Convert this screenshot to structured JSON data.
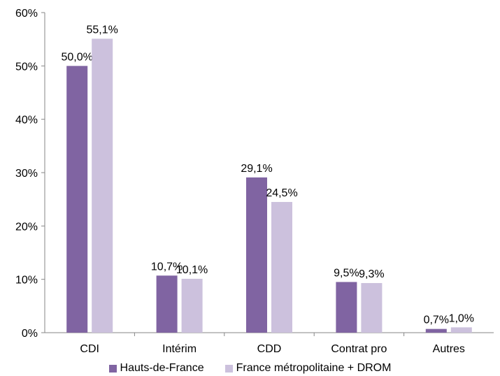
{
  "chart_data": {
    "type": "bar",
    "categories": [
      "CDI",
      "Intérim",
      "CDD",
      "Contrat pro",
      "Autres"
    ],
    "series": [
      {
        "name": "Hauts-de-France",
        "color": "#8064a2",
        "values": [
          50.0,
          10.7,
          29.1,
          9.5,
          0.7
        ],
        "labels": [
          "50,0%",
          "10,7%",
          "29,1%",
          "9,5%",
          "0,7%"
        ]
      },
      {
        "name": "France métropolitaine + DROM",
        "color": "#ccc1dd",
        "values": [
          55.1,
          10.1,
          24.5,
          9.3,
          1.0
        ],
        "labels": [
          "55,1%",
          "10,1%",
          "24,5%",
          "9,3%",
          "1,0%"
        ]
      }
    ],
    "ylim": [
      0,
      60
    ],
    "yticks": [
      0,
      10,
      20,
      30,
      40,
      50,
      60
    ],
    "ytick_labels": [
      "0%",
      "10%",
      "20%",
      "30%",
      "40%",
      "50%",
      "60%"
    ],
    "grid": false,
    "legend_position": "bottom"
  }
}
